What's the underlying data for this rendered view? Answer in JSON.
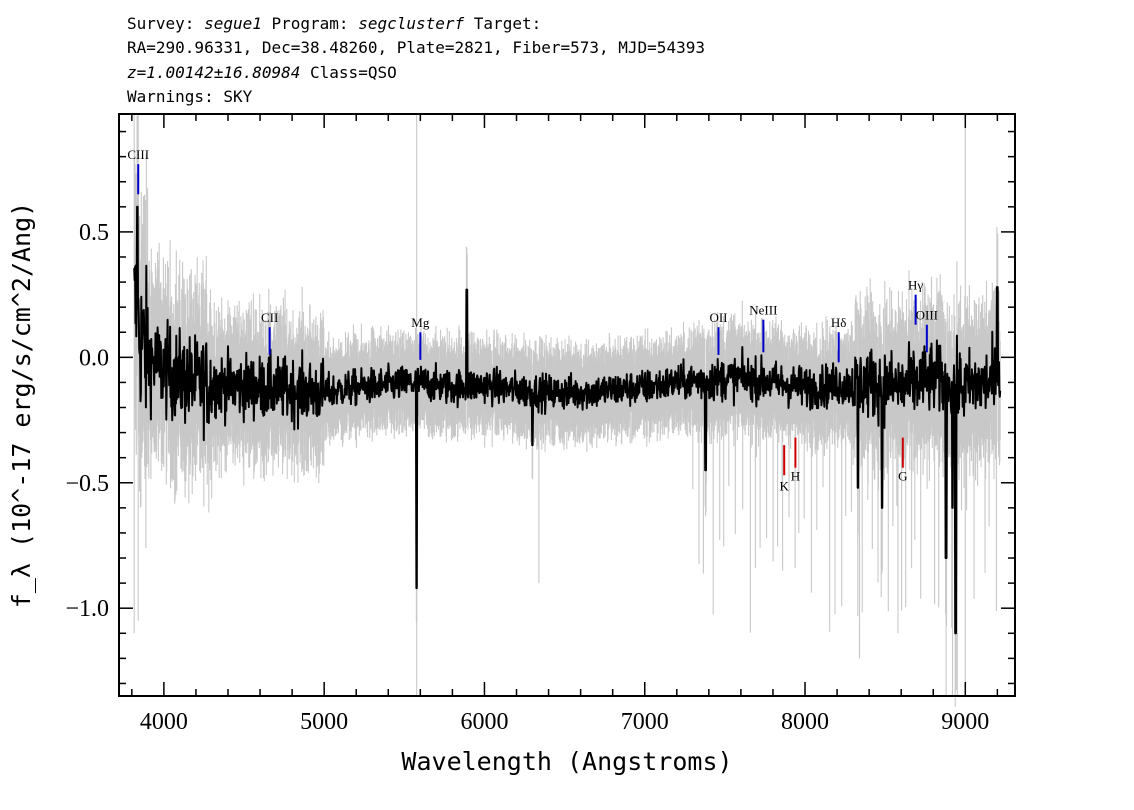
{
  "header": {
    "line1": {
      "survey_label": "Survey: ",
      "survey": "segue1",
      "program_label": " Program: ",
      "program": "segclusterf",
      "target_label": " Target:"
    },
    "line2": "RA=290.96331, Dec=38.48260, Plate=2821, Fiber=573, MJD=54393",
    "line3": {
      "redshift": "z=1.00142±16.80984",
      "class": " Class=QSO"
    },
    "line4": "Warnings: SKY"
  },
  "chart_data": {
    "type": "line",
    "xlabel": "Wavelength (Angstroms)",
    "ylabel": "f_λ (10^-17 erg/s/cm^2/Ang)",
    "xlim": [
      3720,
      9310
    ],
    "ylim": [
      -1.35,
      0.97
    ],
    "x_ticks": [
      4000,
      5000,
      6000,
      7000,
      8000,
      9000
    ],
    "y_ticks": [
      -1.0,
      -0.5,
      0.0,
      0.5
    ],
    "y_tick_labels": [
      "−1.0",
      "−0.5",
      "0.0",
      "0.5"
    ],
    "grid": false,
    "series": [
      {
        "color": "#000000",
        "anchors_x": [
          3820,
          3850,
          3900,
          4000,
          4100,
          4200,
          4400,
          4600,
          4800,
          5000,
          5200,
          5400,
          5600,
          5800,
          6000,
          6200,
          6400,
          6600,
          6800,
          7000,
          7200,
          7400,
          7600,
          7800,
          8000,
          8200,
          8400,
          8600,
          8800,
          9000,
          9200
        ],
        "anchors_y": [
          0.2,
          0.08,
          0.0,
          -0.05,
          -0.08,
          -0.1,
          -0.11,
          -0.12,
          -0.13,
          -0.14,
          -0.12,
          -0.11,
          -0.1,
          -0.12,
          -0.11,
          -0.13,
          -0.14,
          -0.14,
          -0.13,
          -0.12,
          -0.1,
          -0.09,
          -0.08,
          -0.1,
          -0.12,
          -0.11,
          -0.1,
          -0.12,
          -0.08,
          -0.12,
          -0.09
        ],
        "features": [
          [
            5577,
            -0.92
          ],
          [
            5890,
            0.27
          ],
          [
            8920,
            -0.6
          ],
          [
            8940,
            -1.1
          ],
          [
            8880,
            -0.8
          ],
          [
            8480,
            -0.6
          ],
          [
            8330,
            -0.52
          ],
          [
            9200,
            0.28
          ],
          [
            3835,
            0.6
          ],
          [
            7380,
            -0.45
          ],
          [
            6300,
            -0.35
          ]
        ]
      },
      {
        "color": "#c8c8c8",
        "role": "error band",
        "spikes": [
          [
            3815,
            0.97,
            -1.1
          ],
          [
            3840,
            0.97,
            -1.05
          ],
          [
            5577,
            0.97,
            -1.35
          ],
          [
            8880,
            -0.35,
            -1.35
          ],
          [
            8920,
            -0.4,
            -1.35
          ],
          [
            8950,
            -0.4,
            -1.35
          ],
          [
            9000,
            0.97,
            -1.35
          ],
          [
            8340,
            -0.3,
            -1.2
          ],
          [
            8580,
            -0.3,
            -1.1
          ],
          [
            7860,
            -0.35,
            -0.85
          ],
          [
            6340,
            -0.1,
            -0.9
          ]
        ]
      }
    ],
    "line_markers": [
      {
        "label": "CIII",
        "x": 3840,
        "y_top": 0.77,
        "y_bottom": 0.65,
        "color": "#0000cc",
        "label_y": 0.79
      },
      {
        "label": "CII",
        "x": 4660,
        "y_top": 0.12,
        "y_bottom": 0.01,
        "color": "#0000cc",
        "label_y": 0.14
      },
      {
        "label": "Mg",
        "x": 5600,
        "y_top": 0.1,
        "y_bottom": -0.01,
        "color": "#0000cc",
        "label_y": 0.12
      },
      {
        "label": "OII",
        "x": 7460,
        "y_top": 0.12,
        "y_bottom": 0.01,
        "color": "#0000cc",
        "label_y": 0.14
      },
      {
        "label": "NeIII",
        "x": 7740,
        "y_top": 0.15,
        "y_bottom": 0.02,
        "color": "#0000cc",
        "label_y": 0.17
      },
      {
        "label": "Hδ",
        "x": 8210,
        "y_top": 0.1,
        "y_bottom": -0.02,
        "color": "#0000cc",
        "label_y": 0.12
      },
      {
        "label": "Hγ",
        "x": 8690,
        "y_top": 0.25,
        "y_bottom": 0.13,
        "color": "#0000cc",
        "label_y": 0.27
      },
      {
        "label": "OIII",
        "x": 8760,
        "y_top": 0.13,
        "y_bottom": 0.02,
        "color": "#0000cc",
        "label_y": 0.15
      },
      {
        "label": "K",
        "x": 7870,
        "y_top": -0.35,
        "y_bottom": -0.47,
        "color": "#cc0000",
        "label_y": -0.53
      },
      {
        "label": "H",
        "x": 7940,
        "y_top": -0.32,
        "y_bottom": -0.44,
        "color": "#cc0000",
        "label_y": -0.49
      },
      {
        "label": "G",
        "x": 8610,
        "y_top": -0.32,
        "y_bottom": -0.44,
        "color": "#cc0000",
        "label_y": -0.49
      }
    ]
  }
}
